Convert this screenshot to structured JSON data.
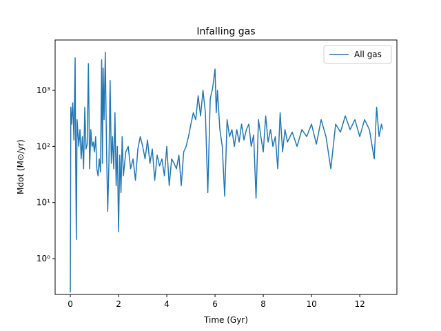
{
  "chart_data": {
    "type": "line",
    "title": "Infalling gas",
    "xlabel": "Time (Gyr)",
    "ylabel": "Mdot (M⊙/yr)",
    "log_y": true,
    "legend": "upper right",
    "xlim": [
      -0.63,
      13.54
    ],
    "ylim": [
      0.23,
      7900
    ],
    "xticks": [
      0,
      2,
      4,
      6,
      8,
      10,
      12
    ],
    "yticks": [
      {
        "value": 1,
        "label": "10⁰"
      },
      {
        "value": 10,
        "label": "10¹"
      },
      {
        "value": 100,
        "label": "10²"
      },
      {
        "value": 1000,
        "label": "10³"
      }
    ],
    "x": [
      0,
      0.02,
      0.05,
      0.1,
      0.15,
      0.2,
      0.22,
      0.25,
      0.28,
      0.35,
      0.4,
      0.45,
      0.5,
      0.55,
      0.6,
      0.65,
      0.7,
      0.75,
      0.8,
      0.85,
      0.9,
      0.95,
      1.0,
      1.05,
      1.1,
      1.15,
      1.2,
      1.25,
      1.3,
      1.33,
      1.36,
      1.4,
      1.45,
      1.5,
      1.55,
      1.6,
      1.65,
      1.7,
      1.75,
      1.8,
      1.85,
      1.9,
      1.95,
      2.0,
      2.05,
      2.1,
      2.15,
      2.2,
      2.3,
      2.4,
      2.5,
      2.6,
      2.7,
      2.8,
      2.9,
      3.0,
      3.1,
      3.2,
      3.3,
      3.4,
      3.5,
      3.6,
      3.7,
      3.8,
      3.9,
      4.0,
      4.1,
      4.2,
      4.3,
      4.4,
      4.5,
      4.6,
      4.7,
      4.8,
      4.9,
      5.0,
      5.1,
      5.2,
      5.3,
      5.4,
      5.5,
      5.6,
      5.7,
      5.8,
      5.9,
      6.0,
      6.05,
      6.1,
      6.2,
      6.3,
      6.4,
      6.5,
      6.6,
      6.7,
      6.8,
      6.9,
      7.0,
      7.1,
      7.2,
      7.3,
      7.4,
      7.5,
      7.6,
      7.7,
      7.8,
      7.9,
      8.0,
      8.1,
      8.2,
      8.3,
      8.4,
      8.5,
      8.6,
      8.7,
      8.8,
      8.9,
      9.0,
      9.2,
      9.4,
      9.6,
      9.8,
      10.0,
      10.2,
      10.4,
      10.6,
      10.8,
      11.0,
      11.2,
      11.4,
      11.6,
      11.8,
      12.0,
      12.2,
      12.4,
      12.6,
      12.7,
      12.8,
      12.9,
      12.95
    ],
    "series": [
      {
        "name": "All gas",
        "color": "#1f77b4",
        "values": [
          0.25,
          500,
          250,
          600,
          130,
          3800,
          80,
          2.2,
          300,
          100,
          200,
          60,
          150,
          40,
          500,
          90,
          110,
          3000,
          40,
          200,
          100,
          120,
          80,
          150,
          40,
          30,
          60,
          35,
          3500,
          50,
          2500,
          300,
          4800,
          100,
          7,
          50,
          1500,
          50,
          150,
          40,
          400,
          20,
          100,
          3,
          70,
          15,
          150,
          30,
          80,
          100,
          40,
          60,
          25,
          90,
          150,
          100,
          60,
          130,
          50,
          90,
          25,
          70,
          45,
          60,
          30,
          100,
          20,
          60,
          50,
          40,
          70,
          20,
          80,
          100,
          150,
          250,
          400,
          300,
          800,
          350,
          1000,
          400,
          15,
          700,
          1100,
          2400,
          400,
          1000,
          200,
          100,
          13,
          300,
          150,
          200,
          100,
          200,
          120,
          250,
          130,
          200,
          250,
          100,
          160,
          12,
          300,
          150,
          80,
          350,
          120,
          200,
          100,
          150,
          40,
          400,
          80,
          200,
          120,
          180,
          100,
          200,
          150,
          250,
          110,
          300,
          150,
          40,
          250,
          180,
          350,
          200,
          300,
          150,
          300,
          200,
          60,
          500,
          150,
          250,
          200
        ]
      }
    ]
  }
}
